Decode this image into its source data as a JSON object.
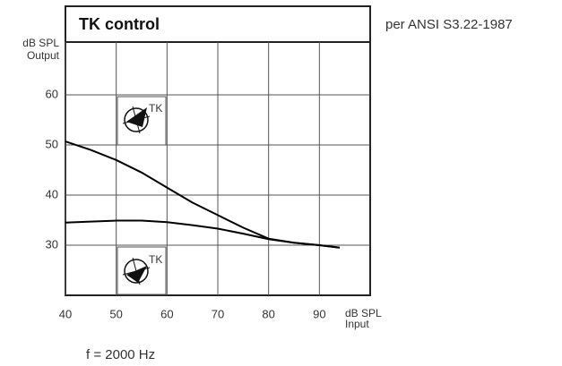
{
  "chart_data": {
    "type": "line",
    "title": "TK control",
    "annotations": [
      "per ANSI S3.22-1987",
      "f = 2000 Hz"
    ],
    "y_label": [
      "dB SPL",
      "Output"
    ],
    "x_label": [
      "dB SPL",
      "Input"
    ],
    "icon_labels": [
      "TK",
      "TK"
    ],
    "xlim": [
      40,
      100
    ],
    "ylim": [
      20,
      70
    ],
    "xticks": [
      40,
      50,
      60,
      70,
      80,
      90
    ],
    "yticks": [
      30,
      40,
      50,
      60
    ],
    "grid": true,
    "series": [
      {
        "color": "#000000",
        "x": [
          40,
          45,
          50,
          55,
          60,
          65,
          70,
          75,
          80,
          85,
          90,
          94
        ],
        "values": [
          50.7,
          49,
          47,
          44.5,
          41.5,
          38.5,
          36,
          33.5,
          31.3,
          30.5,
          30,
          29.5
        ]
      },
      {
        "color": "#000000",
        "x": [
          40,
          45,
          50,
          55,
          60,
          65,
          70,
          75,
          80,
          85,
          90,
          94
        ],
        "values": [
          34.5,
          34.7,
          34.9,
          34.9,
          34.6,
          34,
          33.3,
          32.3,
          31.2,
          30.5,
          30,
          29.5
        ]
      }
    ]
  }
}
